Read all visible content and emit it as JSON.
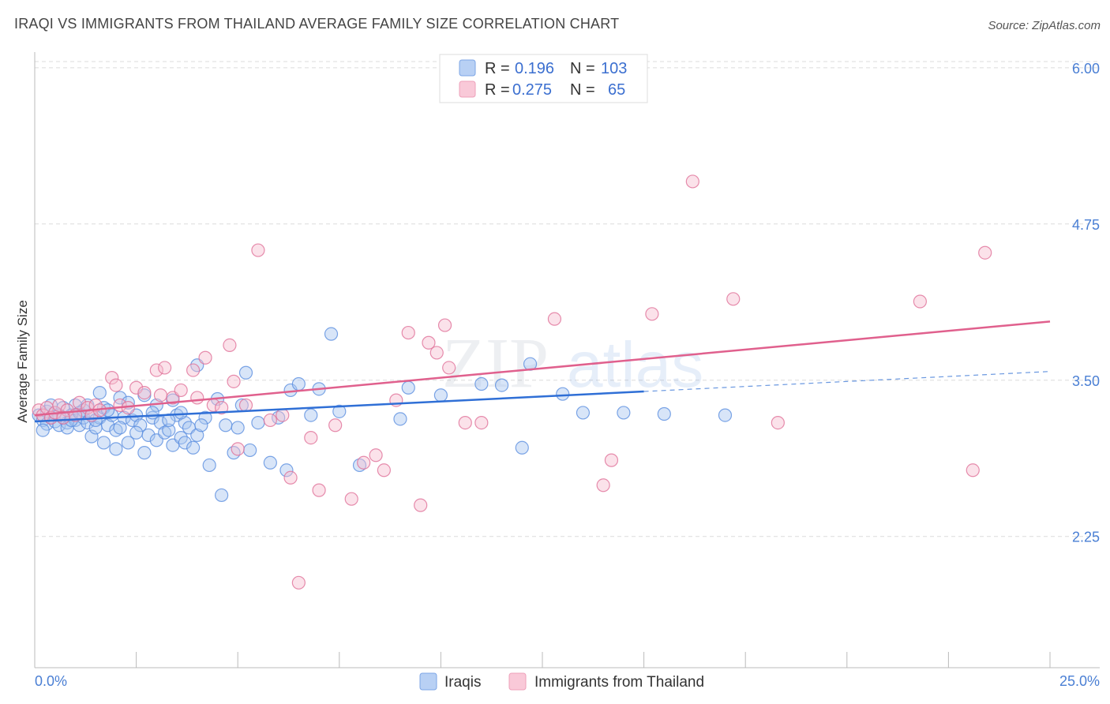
{
  "title": "IRAQI VS IMMIGRANTS FROM THAILAND AVERAGE FAMILY SIZE CORRELATION CHART",
  "source": "Source: ZipAtlas.com",
  "watermark": "ZIPatlas",
  "chart_data": {
    "type": "scatter",
    "ylabel": "Average Family Size",
    "xlim": [
      0,
      25
    ],
    "ylim": [
      1.2,
      6.1
    ],
    "y_ticks": [
      {
        "value": 6.0,
        "label": "6.00"
      },
      {
        "value": 4.75,
        "label": "4.75"
      },
      {
        "value": 3.5,
        "label": "3.50"
      },
      {
        "value": 2.25,
        "label": "2.25"
      }
    ],
    "x_end_labels": {
      "left": "0.0%",
      "right": "25.0%"
    },
    "grid": true,
    "legend_top": {
      "placement": "top-center",
      "rows": [
        {
          "r_label": "R =",
          "r_value": "0.196",
          "n_label": "N =",
          "n_value": "103",
          "color": "#8fb4ec"
        },
        {
          "r_label": "R =",
          "r_value": "0.275",
          "n_label": "N =",
          "n_value": "65",
          "color": "#f4a7bf"
        }
      ]
    },
    "series": [
      {
        "name": "Iraqis",
        "color": "#5b8fe0",
        "fill": "#a9c6f0",
        "trend": {
          "x0": 0,
          "y0": 3.17,
          "x1": 15,
          "y1": 3.41,
          "dash_x1": 25,
          "dash_y1": 3.57
        },
        "points": [
          [
            0.1,
            3.22
          ],
          [
            0.2,
            3.18
          ],
          [
            0.3,
            3.25
          ],
          [
            0.3,
            3.15
          ],
          [
            0.4,
            3.2
          ],
          [
            0.5,
            3.17
          ],
          [
            0.5,
            3.24
          ],
          [
            0.6,
            3.14
          ],
          [
            0.7,
            3.2
          ],
          [
            0.7,
            3.28
          ],
          [
            0.8,
            3.16
          ],
          [
            0.8,
            3.12
          ],
          [
            0.9,
            3.22
          ],
          [
            1.0,
            3.18
          ],
          [
            1.0,
            3.3
          ],
          [
            1.1,
            3.14
          ],
          [
            1.2,
            3.2
          ],
          [
            1.2,
            3.26
          ],
          [
            1.3,
            3.16
          ],
          [
            1.4,
            3.05
          ],
          [
            1.4,
            3.22
          ],
          [
            1.5,
            3.12
          ],
          [
            1.6,
            3.2
          ],
          [
            1.6,
            3.4
          ],
          [
            1.7,
            3.0
          ],
          [
            1.7,
            3.28
          ],
          [
            1.8,
            3.14
          ],
          [
            1.9,
            3.22
          ],
          [
            2.0,
            2.95
          ],
          [
            2.0,
            3.1
          ],
          [
            2.1,
            3.36
          ],
          [
            2.2,
            3.2
          ],
          [
            2.3,
            3.32
          ],
          [
            2.3,
            3.0
          ],
          [
            2.4,
            3.18
          ],
          [
            2.5,
            3.22
          ],
          [
            2.6,
            3.14
          ],
          [
            2.7,
            2.92
          ],
          [
            2.7,
            3.38
          ],
          [
            2.8,
            3.06
          ],
          [
            2.9,
            3.2
          ],
          [
            3.0,
            3.3
          ],
          [
            3.0,
            3.02
          ],
          [
            3.1,
            3.16
          ],
          [
            3.2,
            3.08
          ],
          [
            3.3,
            3.1
          ],
          [
            3.4,
            2.98
          ],
          [
            3.4,
            3.34
          ],
          [
            3.5,
            3.22
          ],
          [
            3.6,
            3.04
          ],
          [
            3.7,
            3.16
          ],
          [
            3.7,
            3.0
          ],
          [
            3.8,
            3.12
          ],
          [
            3.9,
            2.96
          ],
          [
            4.0,
            3.06
          ],
          [
            4.0,
            3.62
          ],
          [
            4.2,
            3.2
          ],
          [
            4.3,
            2.82
          ],
          [
            4.5,
            3.35
          ],
          [
            4.6,
            2.58
          ],
          [
            4.7,
            3.14
          ],
          [
            4.9,
            2.92
          ],
          [
            5.0,
            3.12
          ],
          [
            5.1,
            3.3
          ],
          [
            5.2,
            3.56
          ],
          [
            5.3,
            2.94
          ],
          [
            5.5,
            3.16
          ],
          [
            5.8,
            2.84
          ],
          [
            6.0,
            3.2
          ],
          [
            6.2,
            2.78
          ],
          [
            6.3,
            3.42
          ],
          [
            6.5,
            3.47
          ],
          [
            6.8,
            3.22
          ],
          [
            7.0,
            3.43
          ],
          [
            7.3,
            3.87
          ],
          [
            7.5,
            3.25
          ],
          [
            8.0,
            2.82
          ],
          [
            9.0,
            3.19
          ],
          [
            9.2,
            3.44
          ],
          [
            10.0,
            3.38
          ],
          [
            11.0,
            3.47
          ],
          [
            11.5,
            3.46
          ],
          [
            12.0,
            2.96
          ],
          [
            12.2,
            3.63
          ],
          [
            13.0,
            3.39
          ],
          [
            13.5,
            3.24
          ],
          [
            14.5,
            3.24
          ],
          [
            15.5,
            3.23
          ],
          [
            17.0,
            3.22
          ],
          [
            0.2,
            3.1
          ],
          [
            0.4,
            3.3
          ],
          [
            0.6,
            3.22
          ],
          [
            0.9,
            3.18
          ],
          [
            1.1,
            3.24
          ],
          [
            1.3,
            3.3
          ],
          [
            1.5,
            3.18
          ],
          [
            1.8,
            3.26
          ],
          [
            2.1,
            3.12
          ],
          [
            2.5,
            3.08
          ],
          [
            2.9,
            3.24
          ],
          [
            3.3,
            3.18
          ],
          [
            3.6,
            3.24
          ],
          [
            4.1,
            3.14
          ]
        ]
      },
      {
        "name": "Immigrants from Thailand",
        "color": "#e07098",
        "fill": "#f7bfd0",
        "trend": {
          "x0": 0,
          "y0": 3.22,
          "x1": 25,
          "y1": 3.97
        },
        "points": [
          [
            0.1,
            3.26
          ],
          [
            0.2,
            3.22
          ],
          [
            0.3,
            3.28
          ],
          [
            0.4,
            3.2
          ],
          [
            0.5,
            3.24
          ],
          [
            0.6,
            3.3
          ],
          [
            0.8,
            3.26
          ],
          [
            1.0,
            3.22
          ],
          [
            1.1,
            3.32
          ],
          [
            1.3,
            3.28
          ],
          [
            1.4,
            3.22
          ],
          [
            1.5,
            3.3
          ],
          [
            1.6,
            3.26
          ],
          [
            1.9,
            3.52
          ],
          [
            2.0,
            3.46
          ],
          [
            2.1,
            3.3
          ],
          [
            2.3,
            3.28
          ],
          [
            2.5,
            3.44
          ],
          [
            2.7,
            3.4
          ],
          [
            3.0,
            3.58
          ],
          [
            3.1,
            3.38
          ],
          [
            3.2,
            3.6
          ],
          [
            3.4,
            3.36
          ],
          [
            3.6,
            3.42
          ],
          [
            3.9,
            3.58
          ],
          [
            4.0,
            3.36
          ],
          [
            4.2,
            3.68
          ],
          [
            4.4,
            3.3
          ],
          [
            4.6,
            3.28
          ],
          [
            4.8,
            3.78
          ],
          [
            4.9,
            3.49
          ],
          [
            5.0,
            2.95
          ],
          [
            5.2,
            3.3
          ],
          [
            5.5,
            4.54
          ],
          [
            5.8,
            3.18
          ],
          [
            6.1,
            3.22
          ],
          [
            6.3,
            2.72
          ],
          [
            6.5,
            1.88
          ],
          [
            6.8,
            3.04
          ],
          [
            7.0,
            2.62
          ],
          [
            7.4,
            3.14
          ],
          [
            7.8,
            2.55
          ],
          [
            8.1,
            2.84
          ],
          [
            8.4,
            2.9
          ],
          [
            8.6,
            2.78
          ],
          [
            8.9,
            3.34
          ],
          [
            9.2,
            3.88
          ],
          [
            9.5,
            2.5
          ],
          [
            9.7,
            3.8
          ],
          [
            9.9,
            3.72
          ],
          [
            10.1,
            3.94
          ],
          [
            10.2,
            3.6
          ],
          [
            10.6,
            3.16
          ],
          [
            11.0,
            3.16
          ],
          [
            12.8,
            3.99
          ],
          [
            14.0,
            2.66
          ],
          [
            14.2,
            2.86
          ],
          [
            15.2,
            4.03
          ],
          [
            16.2,
            5.09
          ],
          [
            17.2,
            4.15
          ],
          [
            18.3,
            3.16
          ],
          [
            21.8,
            4.13
          ],
          [
            23.1,
            2.78
          ],
          [
            23.4,
            4.52
          ],
          [
            0.7,
            3.2
          ]
        ]
      }
    ]
  },
  "bottom_legend": [
    {
      "label": "Iraqis"
    },
    {
      "label": "Immigrants from Thailand"
    }
  ]
}
